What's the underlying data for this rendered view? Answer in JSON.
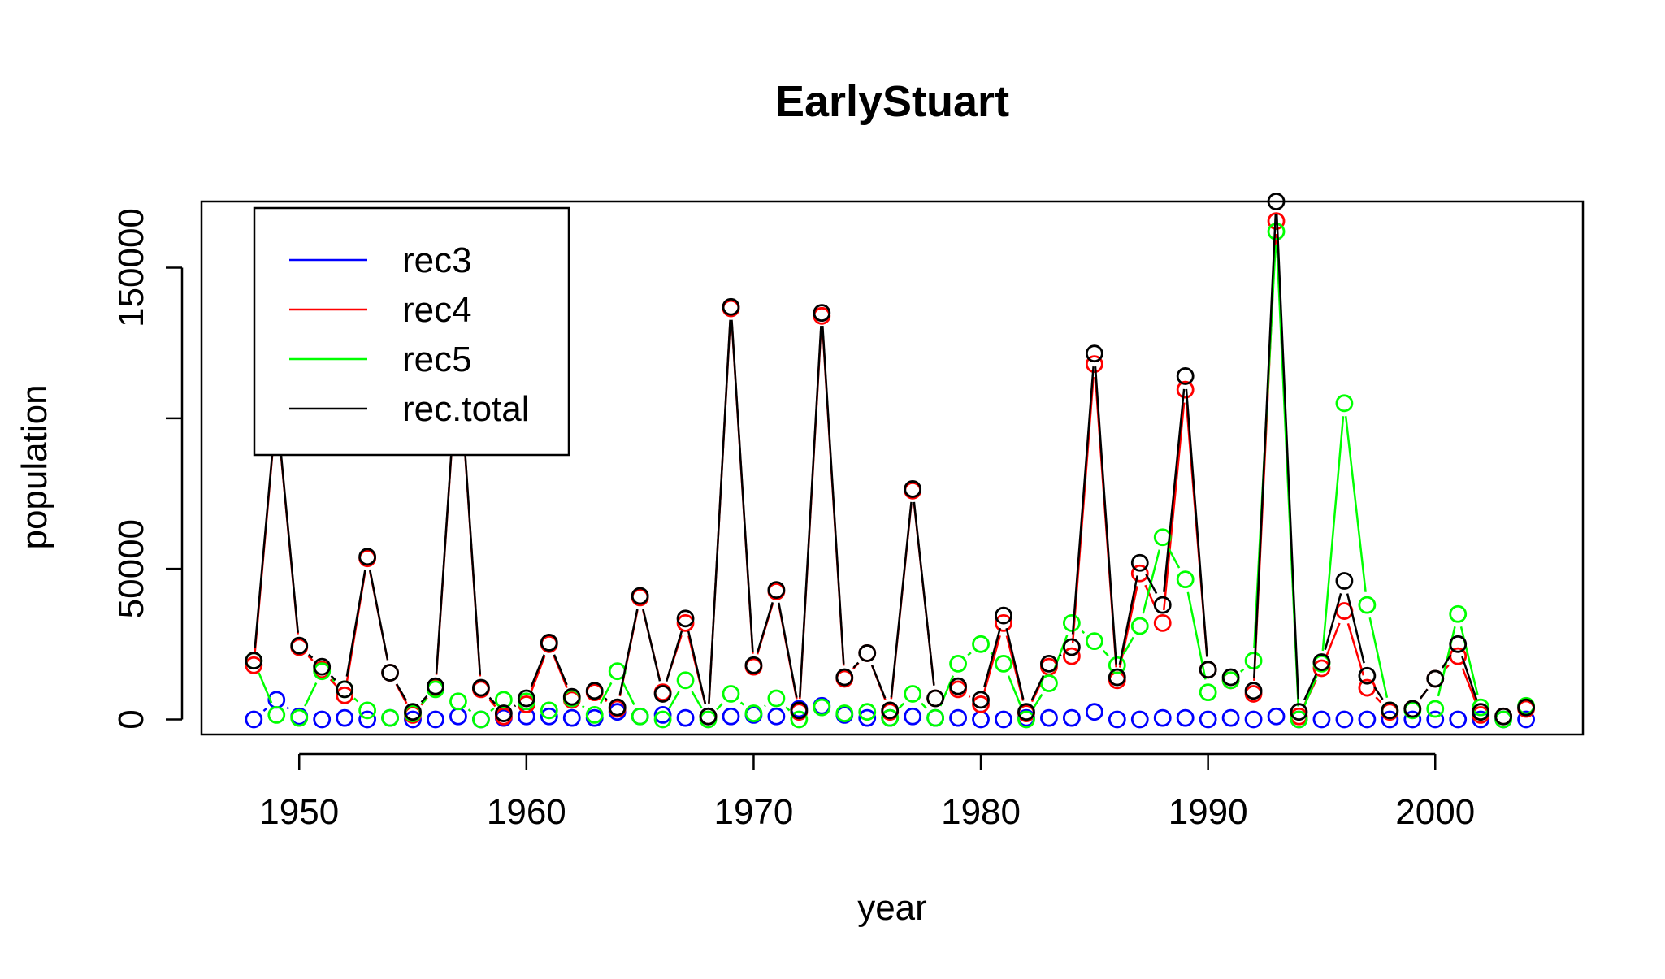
{
  "chart_data": {
    "type": "line",
    "title": "EarlyStuart",
    "xlabel": "year",
    "ylabel": "population",
    "xlim": [
      1945.7,
      2006.5
    ],
    "ylim": [
      -5000,
      172000
    ],
    "xticks": [
      1950,
      1960,
      1970,
      1980,
      1990,
      2000
    ],
    "yticks": [
      0,
      50000,
      150000
    ],
    "ytick_labels": [
      "0",
      "50000",
      "150000"
    ],
    "yticks_unlabeled": [
      100000
    ],
    "legend_position": "top-left",
    "x": [
      1948,
      1949,
      1950,
      1951,
      1952,
      1953,
      1954,
      1955,
      1956,
      1957,
      1958,
      1959,
      1960,
      1961,
      1962,
      1963,
      1964,
      1965,
      1966,
      1967,
      1968,
      1969,
      1970,
      1971,
      1972,
      1973,
      1974,
      1975,
      1976,
      1977,
      1978,
      1979,
      1980,
      1981,
      1982,
      1983,
      1984,
      1985,
      1986,
      1987,
      1988,
      1989,
      1990,
      1991,
      1992,
      1993,
      1994,
      1995,
      1996,
      1997,
      1998,
      1999,
      2000,
      2001,
      2002,
      2003,
      2004
    ],
    "series": [
      {
        "name": "rec3",
        "color": "#0000ff",
        "values": [
          0,
          6500,
          1000,
          0,
          500,
          0,
          500,
          0,
          0,
          1000,
          0,
          500,
          1000,
          1000,
          500,
          500,
          2500,
          1000,
          1500,
          500,
          1000,
          1000,
          1500,
          1000,
          3500,
          4500,
          1500,
          500,
          500,
          1000,
          500,
          500,
          0,
          0,
          500,
          500,
          500,
          2500,
          0,
          0,
          500,
          500,
          0,
          500,
          0,
          1000,
          0,
          0,
          0,
          0,
          0,
          0,
          0,
          0,
          0,
          0,
          0
        ]
      },
      {
        "name": "rec4",
        "color": "#ff0000",
        "values": [
          18000,
          103500,
          24000,
          16500,
          8000,
          53500,
          15500,
          1500,
          10500,
          122000,
          10000,
          1000,
          5000,
          25000,
          6500,
          9000,
          3500,
          40500,
          9000,
          32000,
          1000,
          136500,
          17500,
          42500,
          2500,
          134000,
          13500,
          22000,
          2500,
          76000,
          7000,
          10000,
          5000,
          32000,
          2000,
          17500,
          21000,
          118000,
          13000,
          48500,
          32000,
          109500,
          16500,
          13000,
          8500,
          165500,
          1000,
          17000,
          36000,
          10500,
          2500,
          3500,
          13500,
          21000,
          1500,
          1000,
          3500
        ]
      },
      {
        "name": "rec5",
        "color": "#00ff00",
        "values": [
          19500,
          1500,
          500,
          16000,
          10000,
          3000,
          500,
          2000,
          10000,
          6000,
          0,
          6500,
          6000,
          3000,
          7000,
          1500,
          16000,
          1000,
          0,
          13000,
          0,
          8500,
          2000,
          7000,
          0,
          4000,
          2000,
          2500,
          500,
          8500,
          500,
          18500,
          25000,
          18500,
          0,
          12000,
          32000,
          26000,
          18000,
          31000,
          60500,
          46500,
          9000,
          13000,
          19500,
          162000,
          0,
          18500,
          105000,
          38000,
          3000,
          3000,
          3500,
          35000,
          4000,
          0,
          4500
        ]
      },
      {
        "name": "rec.total",
        "color": "#000000",
        "values": [
          19500,
          104000,
          24500,
          17500,
          10000,
          54000,
          15500,
          2500,
          11000,
          122500,
          10500,
          2000,
          7000,
          25500,
          7500,
          9500,
          4000,
          41000,
          8500,
          33500,
          1000,
          137000,
          18000,
          43000,
          3000,
          135000,
          14000,
          22000,
          3000,
          76500,
          7000,
          11000,
          6500,
          34500,
          2500,
          18500,
          24000,
          121500,
          14000,
          52000,
          38000,
          114000,
          16500,
          14000,
          9500,
          172000,
          2500,
          19000,
          46000,
          14500,
          3000,
          3500,
          13500,
          25000,
          2500,
          1000,
          4000
        ]
      }
    ]
  }
}
